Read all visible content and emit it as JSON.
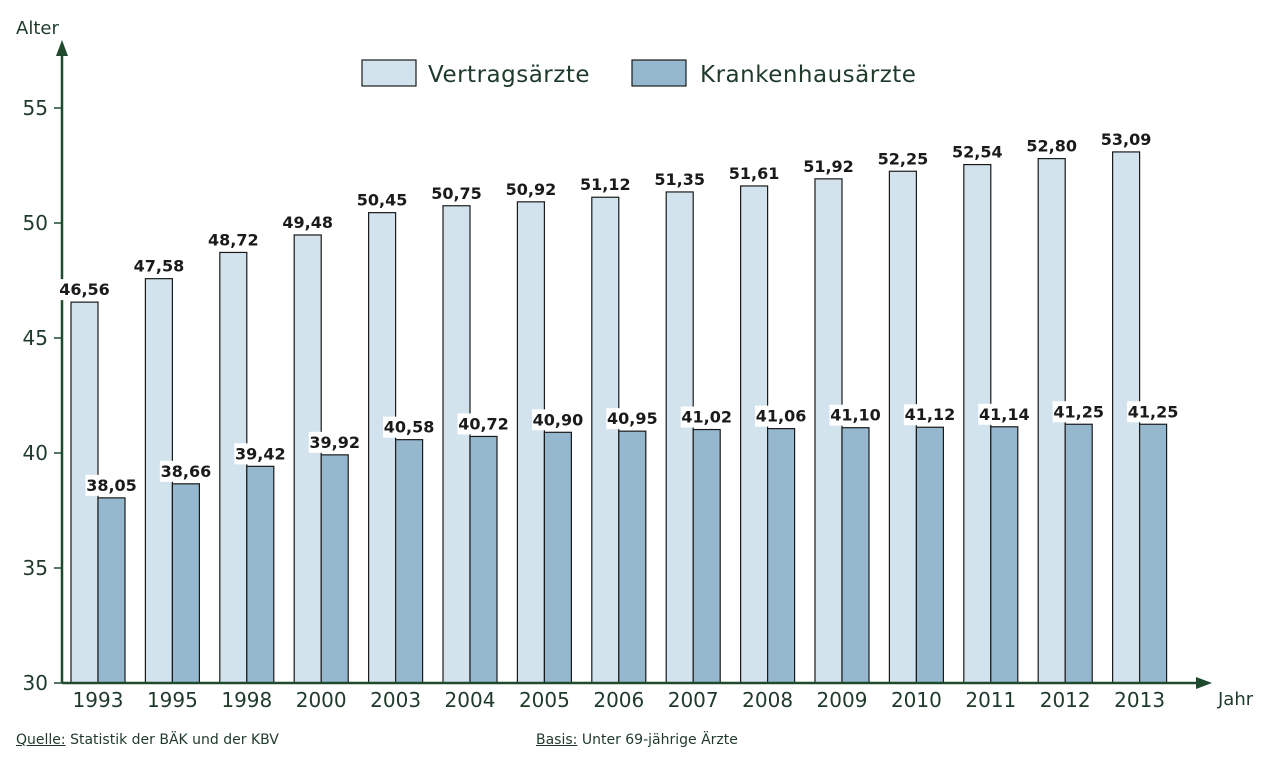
{
  "chart_data": {
    "type": "bar",
    "ylabel": "Alter",
    "xlabel": "Jahr",
    "ylim": [
      30,
      57
    ],
    "yticks": [
      30,
      35,
      40,
      45,
      50,
      55
    ],
    "grid": false,
    "legend_position": "top-center",
    "categories": [
      "1993",
      "1995",
      "1998",
      "2000",
      "2003",
      "2004",
      "2005",
      "2006",
      "2007",
      "2008",
      "2009",
      "2010",
      "2011",
      "2012",
      "2013"
    ],
    "series": [
      {
        "name": "Vertragsärzte",
        "color": "#d3e3ed",
        "values": [
          46.56,
          47.58,
          48.72,
          49.48,
          50.45,
          50.75,
          50.92,
          51.12,
          51.35,
          51.61,
          51.92,
          52.25,
          52.54,
          52.8,
          53.09
        ],
        "labels": [
          "46,56",
          "47,58",
          "48,72",
          "49,48",
          "50,45",
          "50,75",
          "50,92",
          "51,12",
          "51,35",
          "51,61",
          "51,92",
          "52,25",
          "52,54",
          "52,80",
          "53,09"
        ]
      },
      {
        "name": "Krankenhausärzte",
        "color": "#95b8cf",
        "values": [
          38.05,
          38.66,
          39.42,
          39.92,
          40.58,
          40.72,
          40.9,
          40.95,
          41.02,
          41.06,
          41.1,
          41.12,
          41.14,
          41.25,
          41.25
        ],
        "labels": [
          "38,05",
          "38,66",
          "39,42",
          "39,92",
          "40,58",
          "40,72",
          "40,90",
          "40,95",
          "41,02",
          "41,06",
          "41,10",
          "41,12",
          "41,14",
          "41,25",
          "41,25"
        ]
      }
    ],
    "axis_color": "#1f4a2e",
    "bar_outline_color": "#1a1a1a"
  },
  "footer": {
    "source_key": "Quelle:",
    "source_text": " Statistik der BÄK und der KBV",
    "basis_key": "Basis:",
    "basis_text": " Unter 69-jährige Ärzte"
  }
}
